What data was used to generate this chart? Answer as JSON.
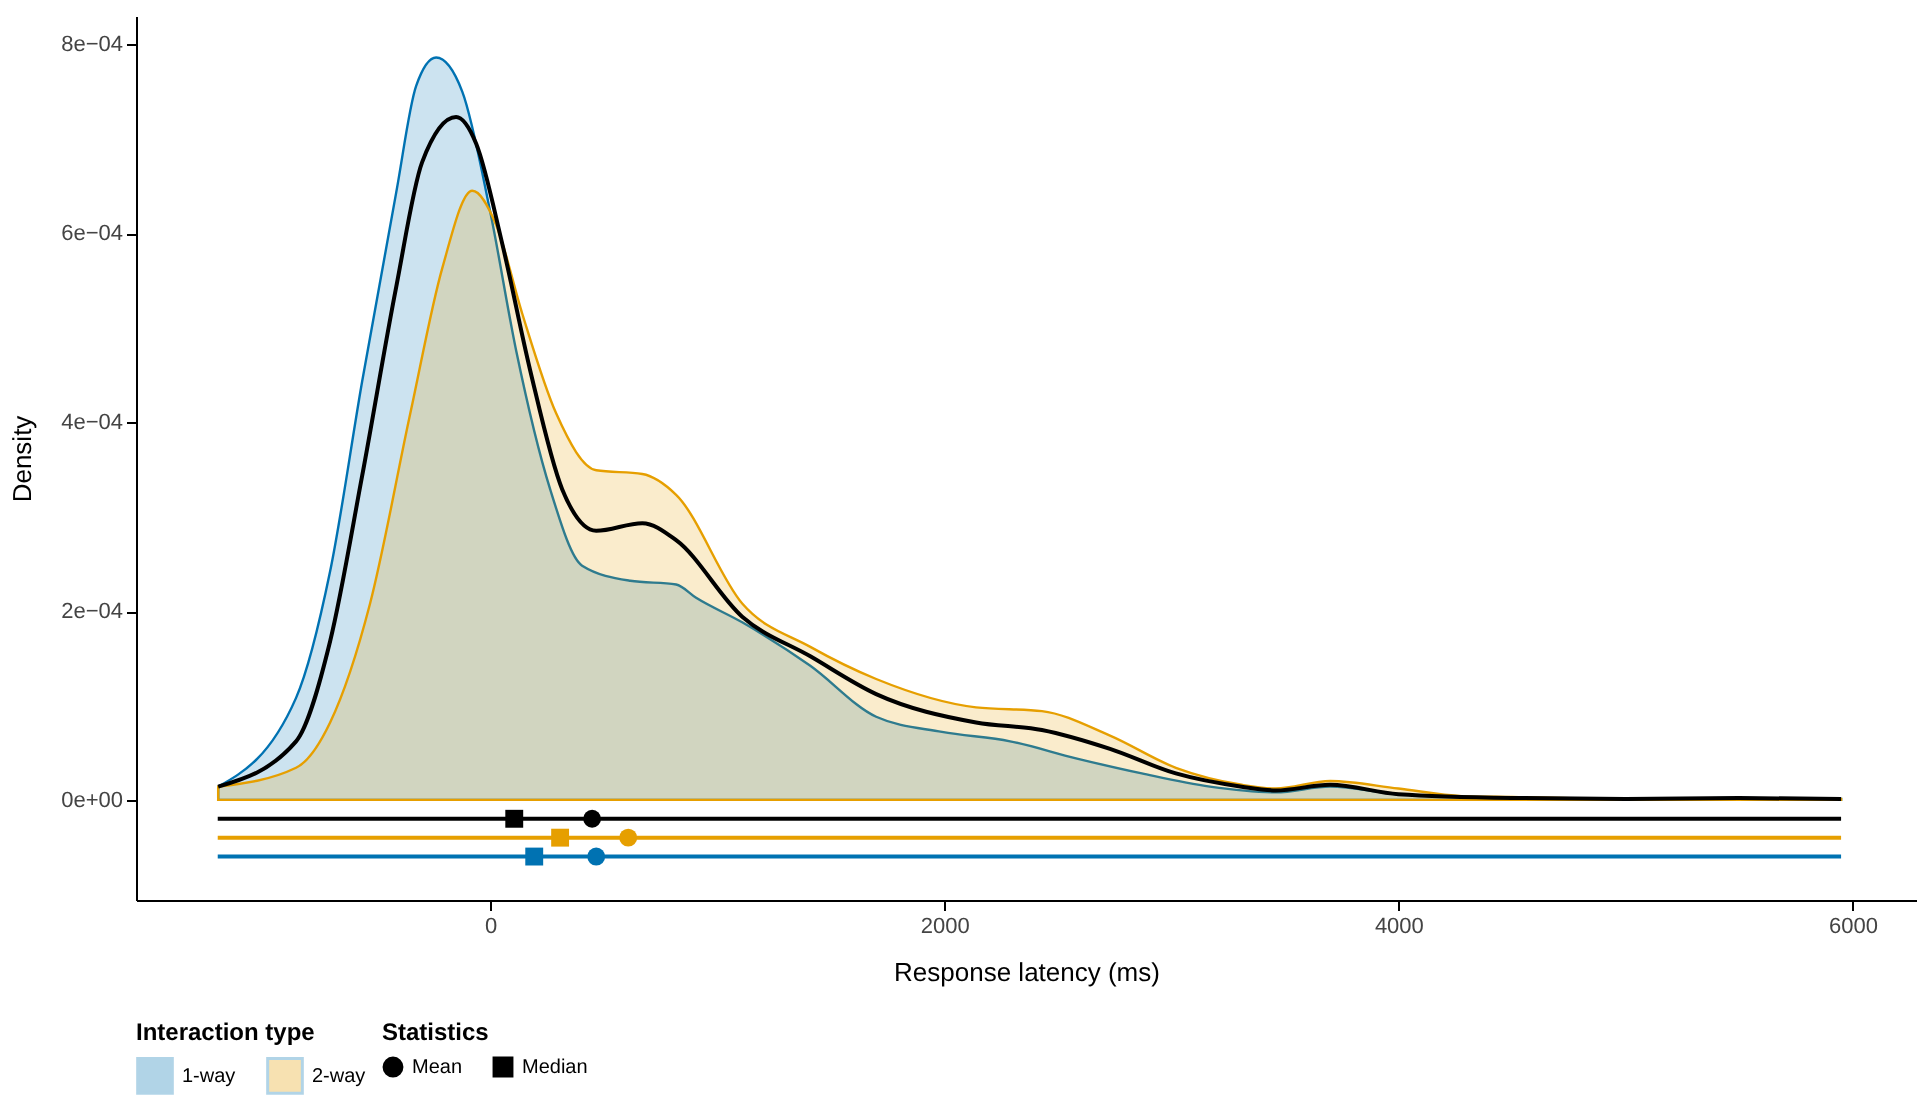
{
  "chart_data": {
    "type": "area",
    "xlabel": "Response latency (ms)",
    "ylabel": "Density",
    "legend_title": [
      "Interaction type",
      "Statistics"
    ],
    "legend": "bottom",
    "grid": false,
    "line_style": "solid",
    "xlim": [
      -1560,
      6280
    ],
    "xticks": [
      0,
      2000,
      4000,
      6000
    ],
    "ylim": [
      -0.000106,
      0.00083
    ],
    "yticks": [
      {
        "value": 0,
        "label": "0e+00"
      },
      {
        "value": 0.0002,
        "label": "2e−04"
      },
      {
        "value": 0.0004,
        "label": "4e−04"
      },
      {
        "value": 0.0006,
        "label": "6e−04"
      },
      {
        "value": 0.0008,
        "label": "8e−04"
      }
    ],
    "series": [
      {
        "name": "1-way",
        "color": "#0072B2",
        "x": [
          -1198,
          -855,
          -705,
          -564,
          -414,
          -326,
          -238,
          -123,
          0,
          115,
          264,
          405,
          617,
          819,
          907,
          1110,
          1410,
          1700,
          1990,
          2290,
          2580,
          2870,
          3170,
          3460,
          3700,
          4000,
          4500,
          5000,
          5500,
          5950
        ],
        "values": [
          1.4e-05,
          0.000108,
          0.000242,
          0.000443,
          0.000643,
          0.000756,
          0.000786,
          0.00075,
          0.000623,
          0.000475,
          0.000329,
          0.000248,
          0.000232,
          0.000228,
          0.000214,
          0.000188,
          0.000142,
          8.8e-05,
          7.2e-05,
          6.2e-05,
          4.4e-05,
          2.8e-05,
          1.4e-05,
          8e-06,
          1.4e-05,
          6e-06,
          2e-06,
          1e-06,
          2e-06,
          1e-06
        ]
      },
      {
        "name": "2-way",
        "color": "#E69F00",
        "x": [
          -1198,
          -855,
          -705,
          -529,
          -352,
          -211,
          -79,
          26,
          141,
          291,
          467,
          670,
          819,
          1110,
          1410,
          1700,
          2140,
          2430,
          2730,
          3020,
          3310,
          3460,
          3700,
          4000,
          4280,
          4500,
          5000,
          5500,
          5950
        ],
        "values": [
          1.4e-05,
          3.4e-05,
          8.2e-05,
          0.000208,
          0.000409,
          0.000563,
          0.000645,
          0.000609,
          0.000515,
          0.000409,
          0.000349,
          0.000345,
          0.000323,
          0.000208,
          0.000162,
          0.000128,
          9.8e-05,
          9.4e-05,
          6.8e-05,
          3.4e-05,
          1.6e-05,
          1.2e-05,
          2e-05,
          1.2e-05,
          4e-06,
          3e-06,
          1e-06,
          1e-06,
          1e-06
        ]
      },
      {
        "type": "line",
        "color": "#000000",
        "x": [
          -1198,
          -855,
          -705,
          -564,
          -414,
          -300,
          -150,
          -62,
          53,
          176,
          317,
          467,
          670,
          819,
          1110,
          1410,
          1700,
          2140,
          2430,
          2730,
          3020,
          3310,
          3460,
          3700,
          4000,
          4500,
          5000,
          5500,
          5950
        ],
        "values": [
          1.4e-05,
          6.2e-05,
          0.000168,
          0.000343,
          0.000543,
          0.000675,
          0.000723,
          0.000695,
          0.000589,
          0.000455,
          0.000329,
          0.000285,
          0.000293,
          0.000275,
          0.000194,
          0.000152,
          0.000112,
          8.2e-05,
          7.4e-05,
          5.4e-05,
          2.8e-05,
          1.4e-05,
          1e-05,
          1.6e-05,
          6e-06,
          2e-06,
          1e-06,
          2e-06,
          1e-06
        ]
      },
      {
        "type": "line",
        "color": "#000000",
        "x": [
          -1200,
          5950
        ],
        "values": [
          -2e-05,
          -2e-05
        ]
      },
      {
        "type": "line",
        "color": "#E69F00",
        "x": [
          -1200,
          5950
        ],
        "values": [
          -4e-05,
          -4e-05
        ]
      },
      {
        "type": "line",
        "color": "#0072B2",
        "x": [
          -1200,
          5950
        ],
        "values": [
          -6e-05,
          -6e-05
        ]
      },
      {
        "name": "Mean",
        "type": "scatter",
        "marker": "circle",
        "x": [
          449,
          608,
          467
        ],
        "values": [
          -2e-05,
          -4e-05,
          -6e-05
        ],
        "colors": [
          "#000000",
          "#E69F00",
          "#0072B2"
        ]
      },
      {
        "name": "Median",
        "type": "scatter",
        "marker": "square",
        "x": [
          106,
          308,
          194
        ],
        "values": [
          -2e-05,
          -4e-05,
          -6e-05
        ],
        "colors": [
          "#000000",
          "#E69F00",
          "#0072B2"
        ]
      }
    ]
  }
}
